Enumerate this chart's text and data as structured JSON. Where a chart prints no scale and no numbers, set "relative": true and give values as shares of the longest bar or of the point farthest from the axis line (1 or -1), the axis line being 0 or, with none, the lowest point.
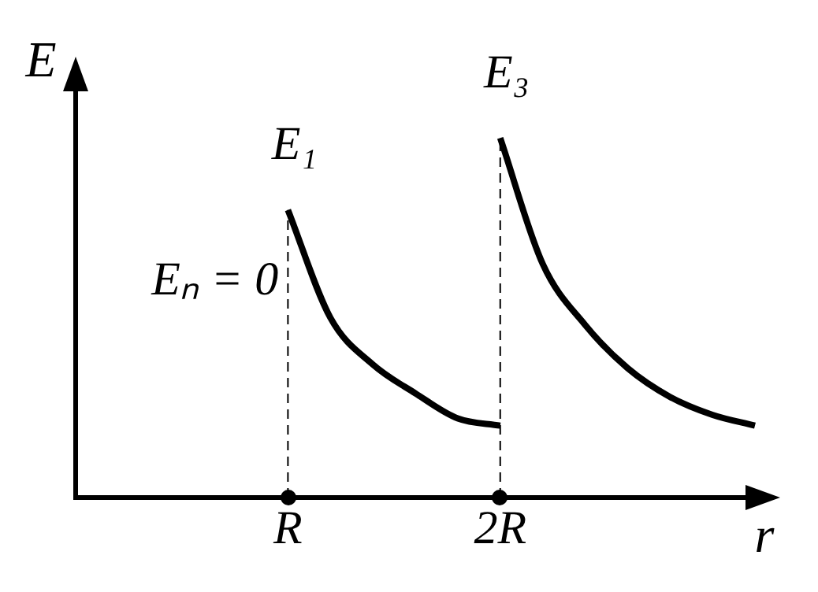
{
  "chart_data": {
    "type": "line",
    "relative": true,
    "xlabel": "r",
    "ylabel": "E",
    "categories": [
      null,
      null,
      null,
      null,
      null,
      "R",
      null,
      null,
      null,
      null,
      "2R",
      null,
      null,
      null,
      null,
      null,
      null
    ],
    "series": [
      {
        "name": "E₁",
        "color": "#000000",
        "values": [
          null,
          null,
          null,
          null,
          null,
          0.8,
          0.5,
          0.37,
          0.29,
          0.22,
          0.2,
          null,
          null,
          null,
          null,
          null,
          null
        ]
      },
      {
        "name": "E₃",
        "color": "#000000",
        "values": [
          null,
          null,
          null,
          null,
          null,
          null,
          null,
          null,
          null,
          null,
          1,
          0.65,
          0.48,
          0.36,
          0.28,
          0.23,
          0.2
        ]
      }
    ],
    "ref_lines": [
      {
        "axis": "x",
        "value": "R",
        "line_style": "dashed",
        "color": "#000000"
      },
      {
        "axis": "x",
        "value": "2R",
        "line_style": "dashed",
        "color": "#000000"
      }
    ],
    "annotations": [
      "Eₙ = 0"
    ],
    "grid": false,
    "legend": false,
    "marker": "none",
    "line_style": "solid"
  }
}
